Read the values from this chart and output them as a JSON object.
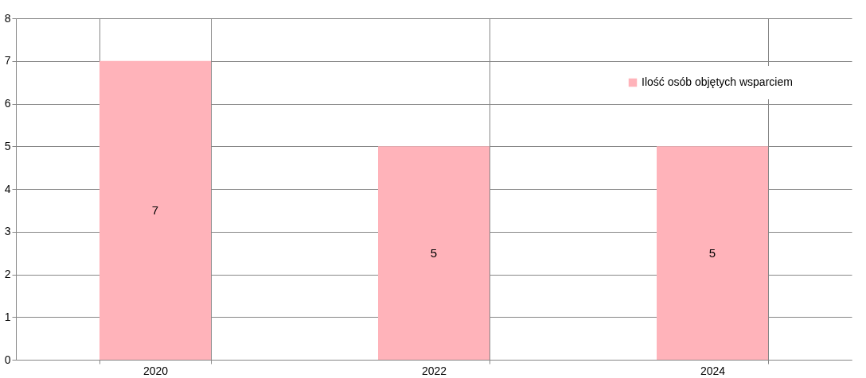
{
  "chart_data": {
    "type": "bar",
    "categories": [
      "2020",
      "2022",
      "2024"
    ],
    "series": [
      {
        "name": "Ilość osób objętych wsparciem",
        "color": "#ffb3ba",
        "values": [
          7,
          5,
          5
        ]
      }
    ],
    "ylim": [
      0,
      8
    ],
    "yticks": [
      0,
      1,
      2,
      3,
      4,
      5,
      6,
      7,
      8
    ],
    "grid": true,
    "legend": "top right",
    "data_labels": true
  }
}
